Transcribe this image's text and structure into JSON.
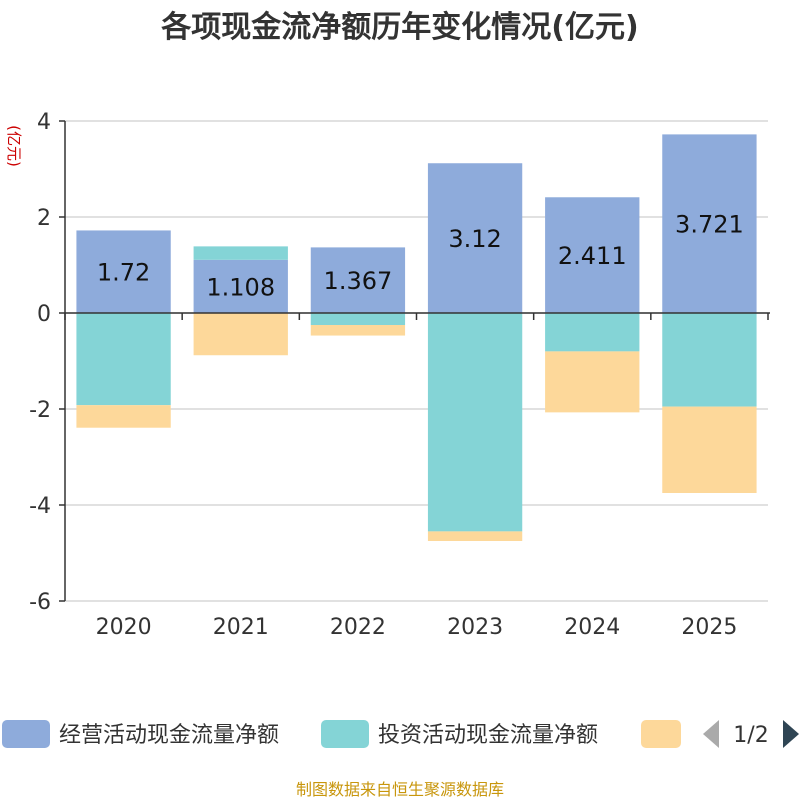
{
  "chart_data": {
    "type": "bar",
    "stacked": true,
    "title": "各项现金流净额历年变化情况(亿元)",
    "ylabel": "(亿元)",
    "xlabel": "",
    "ylim": [
      -6,
      4
    ],
    "yticks": [
      4,
      2,
      0,
      -2,
      -4,
      -6
    ],
    "categories": [
      "2020",
      "2021",
      "2022",
      "2023",
      "2024",
      "2025"
    ],
    "series": [
      {
        "name": "经营活动现金流量净额",
        "color": "#8eabdb",
        "values": [
          1.72,
          1.108,
          1.367,
          3.12,
          2.411,
          3.721
        ]
      },
      {
        "name": "投资活动现金流量净额",
        "color": "#84d4d6",
        "values": [
          -1.92,
          0.28,
          -0.25,
          -4.55,
          -0.8,
          -1.95
        ]
      },
      {
        "name": "",
        "color": "#fdd89a",
        "values": [
          -0.47,
          -0.88,
          -0.22,
          -0.2,
          -1.27,
          -1.8
        ]
      }
    ],
    "data_labels": [
      "1.72",
      "1.108",
      "1.367",
      "3.12",
      "2.411",
      "3.721"
    ],
    "legend_position": "bottom"
  },
  "legend": {
    "items": [
      "经营活动现金流量净额",
      "投资活动现金流量净额",
      ""
    ],
    "page": "1/2"
  },
  "source": "制图数据来自恒生聚源数据库"
}
